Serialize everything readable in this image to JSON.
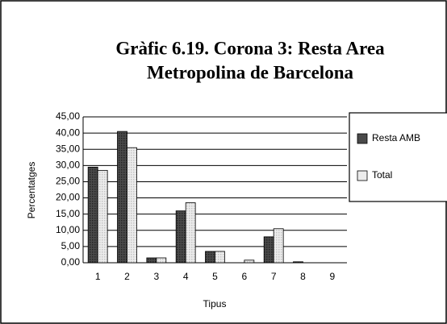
{
  "chart_data": {
    "type": "bar",
    "title": [
      "Gràfic 6.19. Corona 3: Resta Area",
      "Metropolina de Barcelona"
    ],
    "categories": [
      "1",
      "2",
      "3",
      "4",
      "5",
      "6",
      "7",
      "8",
      "9"
    ],
    "series": [
      {
        "name": "Resta AMB",
        "color": "#4a4a4a",
        "values": [
          29.5,
          40.5,
          1.5,
          16,
          3.5,
          0,
          8,
          0.3,
          0
        ]
      },
      {
        "name": "Total",
        "color": "#ececec",
        "values": [
          28.5,
          35.5,
          1.5,
          18.5,
          3.5,
          0.8,
          10.5,
          0,
          0
        ]
      }
    ],
    "ylabel": "Percentatges",
    "xlabel": "Tipus",
    "ylim": [
      0,
      45
    ],
    "yticks": [
      {
        "value": 0,
        "label": "0,00"
      },
      {
        "value": 5,
        "label": "5,00"
      },
      {
        "value": 10,
        "label": "10,00"
      },
      {
        "value": 15,
        "label": "15,00"
      },
      {
        "value": 20,
        "label": "20,00"
      },
      {
        "value": 25,
        "label": "25,00"
      },
      {
        "value": 30,
        "label": "30,00"
      },
      {
        "value": 35,
        "label": "35,00"
      },
      {
        "value": 40,
        "label": "40,00"
      },
      {
        "value": 45,
        "label": "45,00"
      }
    ],
    "grid": true,
    "legend": "right"
  }
}
